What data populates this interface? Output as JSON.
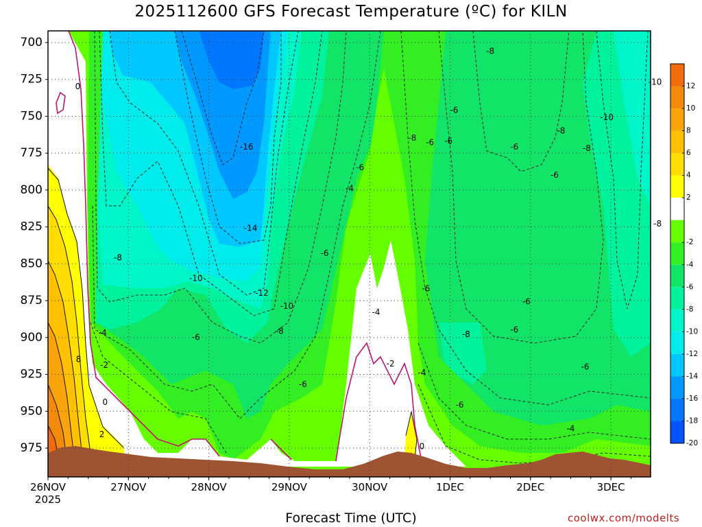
{
  "title": "2025112600 GFS Forecast Temperature (ºC) for KILN",
  "credit": "coolwx.com/modelts",
  "colors": {
    "ground": "#9e5432",
    "freezing_line": "#c0136f",
    "dashed_contour": "#222222",
    "solid_contour": "#111111"
  },
  "chart_data": {
    "type": "heatmap",
    "xlabel": "Forecast Time (UTC)",
    "ylabel": "",
    "x_ticks": [
      "26NOV 2025",
      "27NOV",
      "28NOV",
      "29NOV",
      "30NOV",
      "1DEC",
      "2DEC",
      "3DEC"
    ],
    "xlim_days": [
      0,
      7.5
    ],
    "y_ticks": [
      700,
      725,
      750,
      775,
      800,
      825,
      850,
      875,
      900,
      925,
      950,
      975
    ],
    "ylim_hpa": [
      692,
      1000
    ],
    "y_axis_inverted": true,
    "grid": true,
    "colorbar": {
      "ticks": [
        12,
        10,
        8,
        6,
        4,
        2,
        -2,
        -4,
        -6,
        -8,
        -10,
        -12,
        -14,
        -16,
        -18,
        -20
      ],
      "bins": [
        {
          "from": 12,
          "to": 14,
          "color": "#f06e0c"
        },
        {
          "from": 10,
          "to": 12,
          "color": "#f28a0c"
        },
        {
          "from": 8,
          "to": 10,
          "color": "#f8a40a"
        },
        {
          "from": 6,
          "to": 8,
          "color": "#ffc000"
        },
        {
          "from": 4,
          "to": 6,
          "color": "#ffdd00"
        },
        {
          "from": 2,
          "to": 4,
          "color": "#ffff00"
        },
        {
          "from": -2,
          "to": 2,
          "color": "#ffffff"
        },
        {
          "from": -4,
          "to": -2,
          "color": "#66ff00"
        },
        {
          "from": -6,
          "to": -4,
          "color": "#33ee22"
        },
        {
          "from": -8,
          "to": -6,
          "color": "#11e466"
        },
        {
          "from": -10,
          "to": -8,
          "color": "#00f29c"
        },
        {
          "from": -12,
          "to": -10,
          "color": "#00f5c8"
        },
        {
          "from": -14,
          "to": -12,
          "color": "#00ecec"
        },
        {
          "from": -16,
          "to": -14,
          "color": "#00c8ff"
        },
        {
          "from": -18,
          "to": -16,
          "color": "#0099ff"
        },
        {
          "from": -20,
          "to": -18,
          "color": "#0077ff"
        },
        {
          "from": -22,
          "to": -20,
          "color": "#0055ff"
        }
      ]
    },
    "contour_labels": [
      {
        "text": "0",
        "day": 0.37,
        "p": 730
      },
      {
        "text": "-8",
        "day": 0.87,
        "p": 846
      },
      {
        "text": "-4",
        "day": 0.68,
        "p": 897
      },
      {
        "text": "-2",
        "day": 0.7,
        "p": 919
      },
      {
        "text": "8",
        "day": 0.38,
        "p": 915
      },
      {
        "text": "0",
        "day": 0.71,
        "p": 944
      },
      {
        "text": "2",
        "day": 0.67,
        "p": 966
      },
      {
        "text": "-10",
        "day": 1.84,
        "p": 860
      },
      {
        "text": "-6",
        "day": 1.84,
        "p": 900
      },
      {
        "text": "-16",
        "day": 2.47,
        "p": 771
      },
      {
        "text": "-14",
        "day": 2.52,
        "p": 826
      },
      {
        "text": "-12",
        "day": 2.66,
        "p": 870
      },
      {
        "text": "-10",
        "day": 2.97,
        "p": 879
      },
      {
        "text": "-8",
        "day": 2.88,
        "p": 896
      },
      {
        "text": "-6",
        "day": 3.17,
        "p": 932
      },
      {
        "text": "-6",
        "day": 3.44,
        "p": 843
      },
      {
        "text": "-4",
        "day": 3.75,
        "p": 799
      },
      {
        "text": "-6",
        "day": 3.88,
        "p": 785
      },
      {
        "text": "-4",
        "day": 4.08,
        "p": 883
      },
      {
        "text": "-2",
        "day": 4.26,
        "p": 918
      },
      {
        "text": "0",
        "day": 4.65,
        "p": 974
      },
      {
        "text": "-4",
        "day": 4.65,
        "p": 924
      },
      {
        "text": "-8",
        "day": 4.53,
        "p": 765
      },
      {
        "text": "-6",
        "day": 4.75,
        "p": 768
      },
      {
        "text": "-6",
        "day": 4.98,
        "p": 767
      },
      {
        "text": "-6",
        "day": 4.7,
        "p": 867
      },
      {
        "text": "-6",
        "day": 5.05,
        "p": 746
      },
      {
        "text": "-8",
        "day": 5.2,
        "p": 898
      },
      {
        "text": "-6",
        "day": 5.12,
        "p": 946
      },
      {
        "text": "-6",
        "day": 5.8,
        "p": 771
      },
      {
        "text": "-6",
        "day": 5.95,
        "p": 876
      },
      {
        "text": "-6",
        "day": 5.8,
        "p": 895
      },
      {
        "text": "-8",
        "day": 5.5,
        "p": 706
      },
      {
        "text": "-8",
        "day": 6.38,
        "p": 760
      },
      {
        "text": "-6",
        "day": 6.3,
        "p": 790
      },
      {
        "text": "-8",
        "day": 6.7,
        "p": 772
      },
      {
        "text": "-10",
        "day": 6.95,
        "p": 751
      },
      {
        "text": "-10",
        "day": 7.55,
        "p": 727
      },
      {
        "text": "-8",
        "day": 7.58,
        "p": 823
      },
      {
        "text": "-6",
        "day": 6.68,
        "p": 920
      },
      {
        "text": "-4",
        "day": 6.5,
        "p": 962
      }
    ]
  }
}
